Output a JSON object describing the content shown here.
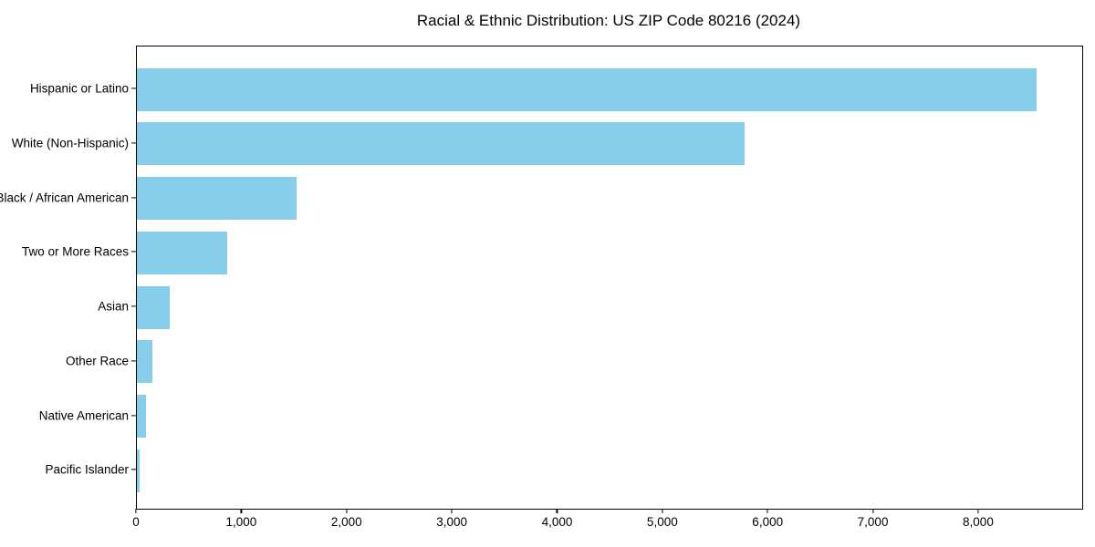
{
  "chart_data": {
    "type": "bar",
    "orientation": "horizontal",
    "title": "Racial & Ethnic Distribution: US ZIP Code 80216 (2024)",
    "categories": [
      "Hispanic or Latino",
      "White (Non-Hispanic)",
      "Black / African American",
      "Two or More Races",
      "Asian",
      "Other Race",
      "Native American",
      "Pacific Islander"
    ],
    "values": [
      8550,
      5770,
      1520,
      860,
      310,
      150,
      90,
      25
    ],
    "xlabel": "",
    "ylabel": "",
    "xlim": [
      0,
      8980
    ],
    "xticks": [
      0,
      1000,
      2000,
      3000,
      4000,
      5000,
      6000,
      7000,
      8000
    ],
    "xtick_labels": [
      "0",
      "1,000",
      "2,000",
      "3,000",
      "4,000",
      "5,000",
      "6,000",
      "7,000",
      "8,000"
    ],
    "bar_color": "#87CEEB",
    "frame_color": "#000000",
    "text_color": "#000000",
    "grid": false,
    "legend": null
  }
}
